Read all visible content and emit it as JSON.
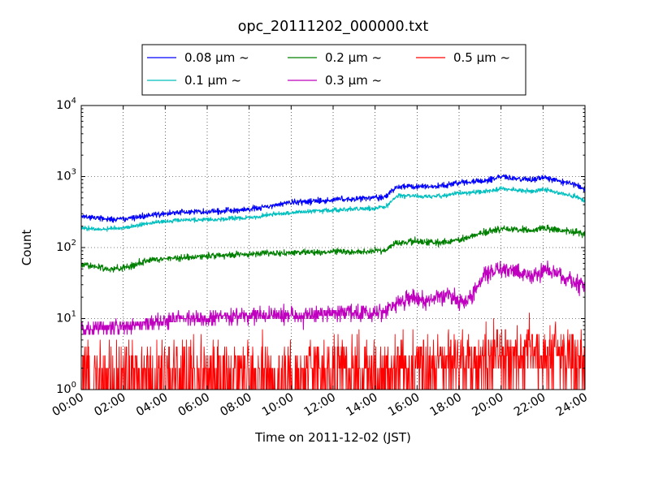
{
  "chart_data": {
    "type": "line",
    "title": "opc_20111202_000000.txt",
    "xlabel": "Time on 2011-12-02 (JST)",
    "ylabel": "Count",
    "x_ticks": [
      "00:00",
      "02:00",
      "04:00",
      "06:00",
      "08:00",
      "10:00",
      "12:00",
      "14:00",
      "16:00",
      "18:00",
      "20:00",
      "22:00",
      "24:00"
    ],
    "y_ticks": [
      {
        "base": "10",
        "exp": "0"
      },
      {
        "base": "10",
        "exp": "1"
      },
      {
        "base": "10",
        "exp": "2"
      },
      {
        "base": "10",
        "exp": "3"
      },
      {
        "base": "10",
        "exp": "4"
      }
    ],
    "y_scale": "log",
    "ylim": [
      1,
      10000
    ],
    "xlim": [
      "00:00",
      "24:00"
    ],
    "grid": true,
    "legend_position": "top-center (above plot)",
    "series_order_legend": [
      0,
      2,
      4,
      1,
      3
    ],
    "x_hours": [
      0,
      0.5,
      1,
      1.5,
      2,
      2.5,
      3,
      3.5,
      4,
      4.5,
      5,
      5.5,
      6,
      6.5,
      7,
      7.5,
      8,
      8.5,
      9,
      9.5,
      10,
      10.5,
      11,
      11.5,
      12,
      12.5,
      13,
      13.5,
      14,
      14.5,
      15,
      15.5,
      16,
      16.5,
      17,
      17.5,
      18,
      18.5,
      19,
      19.5,
      20,
      20.5,
      21,
      21.5,
      22,
      22.5,
      23,
      23.5,
      24
    ],
    "series": [
      {
        "name": "0.08 μm ~",
        "color": "#0000ff",
        "noise": 0.09,
        "values": [
          270,
          265,
          255,
          250,
          255,
          260,
          280,
          290,
          300,
          310,
          320,
          315,
          325,
          320,
          330,
          340,
          345,
          360,
          390,
          410,
          430,
          440,
          450,
          455,
          470,
          480,
          490,
          495,
          505,
          520,
          700,
          740,
          720,
          730,
          740,
          760,
          820,
          840,
          870,
          900,
          1000,
          950,
          940,
          900,
          980,
          900,
          830,
          780,
          640
        ]
      },
      {
        "name": "0.1 μm ~",
        "color": "#00bfbf",
        "noise": 0.07,
        "values": [
          190,
          185,
          180,
          185,
          190,
          200,
          215,
          225,
          235,
          240,
          245,
          245,
          250,
          250,
          255,
          260,
          265,
          275,
          290,
          300,
          310,
          320,
          325,
          330,
          335,
          340,
          350,
          355,
          360,
          370,
          520,
          540,
          530,
          525,
          535,
          545,
          580,
          590,
          610,
          630,
          680,
          650,
          640,
          620,
          660,
          620,
          560,
          530,
          460
        ]
      },
      {
        "name": "0.2 μm ~",
        "color": "#008000",
        "noise": 0.1,
        "values": [
          58,
          55,
          52,
          50,
          52,
          56,
          65,
          68,
          70,
          72,
          72,
          74,
          76,
          77,
          78,
          80,
          80,
          82,
          84,
          82,
          84,
          85,
          87,
          86,
          88,
          86,
          88,
          88,
          90,
          92,
          115,
          120,
          122,
          118,
          116,
          120,
          130,
          140,
          160,
          170,
          185,
          180,
          175,
          170,
          190,
          180,
          170,
          165,
          160
        ]
      },
      {
        "name": "0.3 μm ~",
        "color": "#bf00bf",
        "noise": 0.25,
        "values": [
          7,
          7.2,
          7.5,
          7.5,
          7.8,
          8,
          8.5,
          9,
          9.5,
          10,
          10,
          10,
          10,
          10.5,
          10.5,
          11,
          11,
          11,
          11,
          11,
          11,
          11,
          11.5,
          11.5,
          12,
          12,
          12,
          12,
          12,
          13,
          17,
          19,
          19,
          18,
          20,
          22,
          17,
          18,
          35,
          45,
          52,
          46,
          44,
          38,
          46,
          48,
          38,
          33,
          30
        ]
      },
      {
        "name": "0.5 μm ~",
        "color": "#ff0000",
        "noise": 0,
        "values": [
          1.5,
          1.5,
          1.5,
          1.5,
          1.5,
          1.5,
          1.6,
          1.6,
          1.6,
          1.6,
          1.6,
          1.6,
          1.6,
          1.6,
          1.7,
          1.7,
          1.7,
          1.7,
          1.7,
          1.7,
          1.7,
          1.7,
          1.8,
          1.8,
          1.8,
          1.8,
          1.8,
          1.8,
          1.8,
          1.9,
          2.2,
          2.4,
          2.4,
          2.3,
          2.4,
          2.5,
          2.3,
          2.4,
          3,
          3.5,
          3.8,
          3.6,
          3.5,
          3.2,
          3.4,
          3.6,
          3.2,
          3,
          3
        ]
      }
    ]
  }
}
